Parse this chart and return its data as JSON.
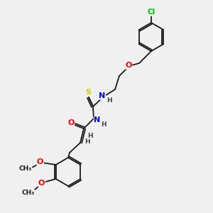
{
  "bg_color": "#f0f0f0",
  "bond_color": "#1a1a1a",
  "atom_colors": {
    "Cl": "#00bb00",
    "O": "#ff0000",
    "N": "#0000ee",
    "S": "#cccc00",
    "H": "#444444",
    "C": "#1a1a1a"
  }
}
